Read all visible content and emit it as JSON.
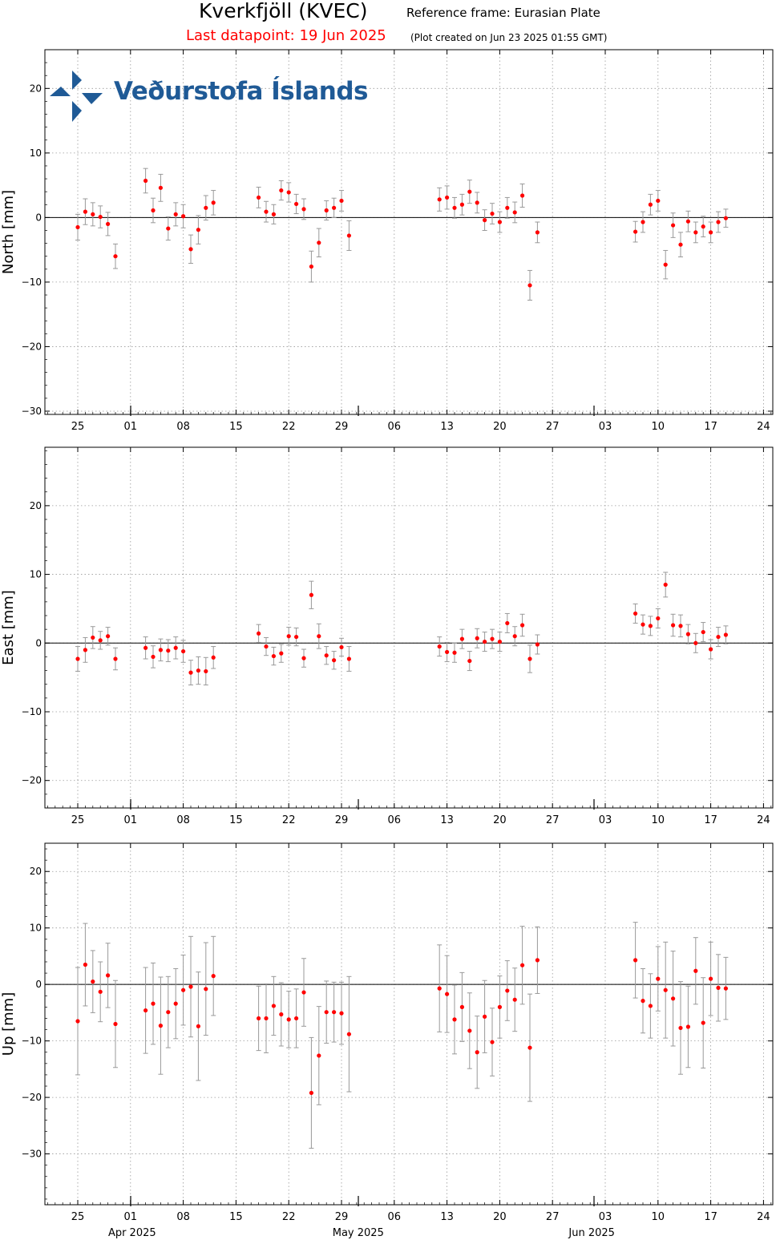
{
  "header": {
    "station_title": "Kverkfjöll (KVEC)",
    "reference_frame": "Reference frame: Eurasian Plate",
    "last_datapoint": "Last datapoint: 19 Jun 2025",
    "plot_created": "(Plot created on Jun 23 2025 01:55 GMT)"
  },
  "logo": {
    "text": "Veðurstofa Íslands",
    "color": "#1f5a96"
  },
  "colors": {
    "points": "#ff0000",
    "errorbars": "#999999",
    "zero_line": "#000000",
    "grid": "#999999",
    "title_red": "#ff0000"
  },
  "x_axis": {
    "tick_labels": [
      "25",
      "01",
      "08",
      "15",
      "22",
      "29",
      "06",
      "13",
      "20",
      "27",
      "03",
      "10",
      "17",
      "24"
    ],
    "month_labels": [
      "Apr 2025",
      "May 2025",
      "Jun 2025"
    ]
  },
  "chart_data": [
    {
      "type": "scatter",
      "ylabel": "North [mm]",
      "ylim": [
        -30.5,
        26
      ],
      "yticks": [
        20,
        10,
        0,
        -10,
        -20,
        -30
      ],
      "ytick_labels": [
        "20",
        "10",
        "0",
        "−10",
        "−20",
        "−30"
      ],
      "grid": true,
      "points": [
        {
          "x": "2025-03-25",
          "y": -1.5,
          "err": 2.0
        },
        {
          "x": "2025-03-26",
          "y": 0.9,
          "err": 2.0
        },
        {
          "x": "2025-03-27",
          "y": 0.5,
          "err": 1.8
        },
        {
          "x": "2025-03-28",
          "y": 0.1,
          "err": 1.7
        },
        {
          "x": "2025-03-29",
          "y": -1.0,
          "err": 1.8
        },
        {
          "x": "2025-03-30",
          "y": -6.0,
          "err": 1.9
        },
        {
          "x": "2025-04-03",
          "y": 5.7,
          "err": 1.9
        },
        {
          "x": "2025-04-04",
          "y": 1.1,
          "err": 1.9
        },
        {
          "x": "2025-04-05",
          "y": 4.6,
          "err": 2.1
        },
        {
          "x": "2025-04-06",
          "y": -1.7,
          "err": 1.8
        },
        {
          "x": "2025-04-07",
          "y": 0.5,
          "err": 1.8
        },
        {
          "x": "2025-04-08",
          "y": 0.2,
          "err": 1.8
        },
        {
          "x": "2025-04-09",
          "y": -4.9,
          "err": 2.2
        },
        {
          "x": "2025-04-10",
          "y": -1.9,
          "err": 2.2
        },
        {
          "x": "2025-04-11",
          "y": 1.5,
          "err": 1.9
        },
        {
          "x": "2025-04-12",
          "y": 2.3,
          "err": 1.9
        },
        {
          "x": "2025-04-18",
          "y": 3.1,
          "err": 1.6
        },
        {
          "x": "2025-04-19",
          "y": 0.9,
          "err": 1.6
        },
        {
          "x": "2025-04-20",
          "y": 0.5,
          "err": 1.5
        },
        {
          "x": "2025-04-21",
          "y": 4.2,
          "err": 1.5
        },
        {
          "x": "2025-04-22",
          "y": 3.9,
          "err": 1.5
        },
        {
          "x": "2025-04-23",
          "y": 2.1,
          "err": 1.5
        },
        {
          "x": "2025-04-24",
          "y": 1.3,
          "err": 1.6
        },
        {
          "x": "2025-04-25",
          "y": -7.6,
          "err": 2.4
        },
        {
          "x": "2025-04-26",
          "y": -3.9,
          "err": 2.2
        },
        {
          "x": "2025-04-27",
          "y": 1.1,
          "err": 1.5
        },
        {
          "x": "2025-04-28",
          "y": 1.5,
          "err": 1.5
        },
        {
          "x": "2025-04-29",
          "y": 2.6,
          "err": 1.6
        },
        {
          "x": "2025-04-30",
          "y": -2.8,
          "err": 2.3
        },
        {
          "x": "2025-05-12",
          "y": 2.8,
          "err": 1.8
        },
        {
          "x": "2025-05-13",
          "y": 3.1,
          "err": 1.8
        },
        {
          "x": "2025-05-14",
          "y": 1.5,
          "err": 1.6
        },
        {
          "x": "2025-05-15",
          "y": 2.0,
          "err": 1.6
        },
        {
          "x": "2025-05-16",
          "y": 4.0,
          "err": 1.8
        },
        {
          "x": "2025-05-17",
          "y": 2.3,
          "err": 1.6
        },
        {
          "x": "2025-05-18",
          "y": -0.4,
          "err": 1.6
        },
        {
          "x": "2025-05-19",
          "y": 0.6,
          "err": 1.6
        },
        {
          "x": "2025-05-20",
          "y": -0.7,
          "err": 1.6
        },
        {
          "x": "2025-05-21",
          "y": 1.5,
          "err": 1.6
        },
        {
          "x": "2025-05-22",
          "y": 0.8,
          "err": 1.6
        },
        {
          "x": "2025-05-23",
          "y": 3.4,
          "err": 1.8
        },
        {
          "x": "2025-05-24",
          "y": -10.5,
          "err": 2.3
        },
        {
          "x": "2025-05-25",
          "y": -2.3,
          "err": 1.6
        },
        {
          "x": "2025-06-07",
          "y": -2.2,
          "err": 1.6
        },
        {
          "x": "2025-06-08",
          "y": -0.7,
          "err": 1.6
        },
        {
          "x": "2025-06-09",
          "y": 2.0,
          "err": 1.6
        },
        {
          "x": "2025-06-10",
          "y": 2.6,
          "err": 1.6
        },
        {
          "x": "2025-06-11",
          "y": -7.3,
          "err": 2.2
        },
        {
          "x": "2025-06-12",
          "y": -1.2,
          "err": 1.9
        },
        {
          "x": "2025-06-13",
          "y": -4.2,
          "err": 1.9
        },
        {
          "x": "2025-06-14",
          "y": -0.6,
          "err": 1.6
        },
        {
          "x": "2025-06-15",
          "y": -2.3,
          "err": 1.6
        },
        {
          "x": "2025-06-16",
          "y": -1.4,
          "err": 1.6
        },
        {
          "x": "2025-06-17",
          "y": -2.3,
          "err": 1.6
        },
        {
          "x": "2025-06-18",
          "y": -0.7,
          "err": 1.6
        },
        {
          "x": "2025-06-19",
          "y": -0.1,
          "err": 1.4
        }
      ]
    },
    {
      "type": "scatter",
      "ylabel": "East [mm]",
      "ylim": [
        -24,
        28.5
      ],
      "yticks": [
        20,
        10,
        0,
        -10,
        -20
      ],
      "ytick_labels": [
        "20",
        "10",
        "0",
        "−10",
        "−20"
      ],
      "grid": true,
      "points": [
        {
          "x": "2025-03-25",
          "y": -2.3,
          "err": 1.8
        },
        {
          "x": "2025-03-26",
          "y": -1.0,
          "err": 1.8
        },
        {
          "x": "2025-03-27",
          "y": 0.8,
          "err": 1.6
        },
        {
          "x": "2025-03-28",
          "y": 0.4,
          "err": 1.3
        },
        {
          "x": "2025-03-29",
          "y": 1.0,
          "err": 1.3
        },
        {
          "x": "2025-03-30",
          "y": -2.3,
          "err": 1.6
        },
        {
          "x": "2025-04-03",
          "y": -0.7,
          "err": 1.6
        },
        {
          "x": "2025-04-04",
          "y": -2.0,
          "err": 1.6
        },
        {
          "x": "2025-04-05",
          "y": -1.0,
          "err": 1.6
        },
        {
          "x": "2025-04-06",
          "y": -1.1,
          "err": 1.6
        },
        {
          "x": "2025-04-07",
          "y": -0.7,
          "err": 1.6
        },
        {
          "x": "2025-04-08",
          "y": -1.2,
          "err": 1.6
        },
        {
          "x": "2025-04-09",
          "y": -4.3,
          "err": 1.8
        },
        {
          "x": "2025-04-10",
          "y": -4.0,
          "err": 2.0
        },
        {
          "x": "2025-04-11",
          "y": -4.1,
          "err": 2.0
        },
        {
          "x": "2025-04-12",
          "y": -2.1,
          "err": 1.6
        },
        {
          "x": "2025-04-18",
          "y": 1.4,
          "err": 1.3
        },
        {
          "x": "2025-04-19",
          "y": -0.5,
          "err": 1.3
        },
        {
          "x": "2025-04-20",
          "y": -1.9,
          "err": 1.3
        },
        {
          "x": "2025-04-21",
          "y": -1.5,
          "err": 1.3
        },
        {
          "x": "2025-04-22",
          "y": 1.0,
          "err": 1.3
        },
        {
          "x": "2025-04-23",
          "y": 0.9,
          "err": 1.3
        },
        {
          "x": "2025-04-24",
          "y": -2.2,
          "err": 1.3
        },
        {
          "x": "2025-04-25",
          "y": 7.0,
          "err": 2.0
        },
        {
          "x": "2025-04-26",
          "y": 1.0,
          "err": 1.8
        },
        {
          "x": "2025-04-27",
          "y": -1.8,
          "err": 1.3
        },
        {
          "x": "2025-04-28",
          "y": -2.5,
          "err": 1.3
        },
        {
          "x": "2025-04-29",
          "y": -0.6,
          "err": 1.3
        },
        {
          "x": "2025-04-30",
          "y": -2.3,
          "err": 1.8
        },
        {
          "x": "2025-05-12",
          "y": -0.5,
          "err": 1.4
        },
        {
          "x": "2025-05-13",
          "y": -1.3,
          "err": 1.4
        },
        {
          "x": "2025-05-14",
          "y": -1.4,
          "err": 1.4
        },
        {
          "x": "2025-05-15",
          "y": 0.6,
          "err": 1.4
        },
        {
          "x": "2025-05-16",
          "y": -2.6,
          "err": 1.4
        },
        {
          "x": "2025-05-17",
          "y": 0.7,
          "err": 1.4
        },
        {
          "x": "2025-05-18",
          "y": 0.2,
          "err": 1.4
        },
        {
          "x": "2025-05-19",
          "y": 0.6,
          "err": 1.4
        },
        {
          "x": "2025-05-20",
          "y": 0.2,
          "err": 1.4
        },
        {
          "x": "2025-05-21",
          "y": 2.9,
          "err": 1.4
        },
        {
          "x": "2025-05-22",
          "y": 1.0,
          "err": 1.4
        },
        {
          "x": "2025-05-23",
          "y": 2.6,
          "err": 1.6
        },
        {
          "x": "2025-05-24",
          "y": -2.3,
          "err": 2.0
        },
        {
          "x": "2025-05-25",
          "y": -0.2,
          "err": 1.4
        },
        {
          "x": "2025-06-07",
          "y": 4.3,
          "err": 1.4
        },
        {
          "x": "2025-06-08",
          "y": 2.7,
          "err": 1.4
        },
        {
          "x": "2025-06-09",
          "y": 2.5,
          "err": 1.4
        },
        {
          "x": "2025-06-10",
          "y": 3.6,
          "err": 1.4
        },
        {
          "x": "2025-06-11",
          "y": 8.5,
          "err": 1.8
        },
        {
          "x": "2025-06-12",
          "y": 2.6,
          "err": 1.6
        },
        {
          "x": "2025-06-13",
          "y": 2.5,
          "err": 1.6
        },
        {
          "x": "2025-06-14",
          "y": 1.3,
          "err": 1.4
        },
        {
          "x": "2025-06-15",
          "y": 0.0,
          "err": 1.4
        },
        {
          "x": "2025-06-16",
          "y": 1.6,
          "err": 1.4
        },
        {
          "x": "2025-06-17",
          "y": -0.9,
          "err": 1.4
        },
        {
          "x": "2025-06-18",
          "y": 0.9,
          "err": 1.4
        },
        {
          "x": "2025-06-19",
          "y": 1.2,
          "err": 1.3
        }
      ]
    },
    {
      "type": "scatter",
      "ylabel": "Up [mm]",
      "ylim": [
        -39,
        25
      ],
      "yticks": [
        20,
        10,
        0,
        -10,
        -20,
        -30
      ],
      "ytick_labels": [
        "20",
        "10",
        "0",
        "−10",
        "−20",
        "−30"
      ],
      "grid": true,
      "points": [
        {
          "x": "2025-03-25",
          "y": -6.5,
          "err": 9.5
        },
        {
          "x": "2025-03-26",
          "y": 3.5,
          "err": 7.3
        },
        {
          "x": "2025-03-27",
          "y": 0.5,
          "err": 5.5
        },
        {
          "x": "2025-03-28",
          "y": -1.3,
          "err": 5.3
        },
        {
          "x": "2025-03-29",
          "y": 1.6,
          "err": 5.7
        },
        {
          "x": "2025-03-30",
          "y": -7.0,
          "err": 7.7
        },
        {
          "x": "2025-04-03",
          "y": -4.6,
          "err": 7.6
        },
        {
          "x": "2025-04-04",
          "y": -3.4,
          "err": 7.2
        },
        {
          "x": "2025-04-05",
          "y": -7.3,
          "err": 8.6
        },
        {
          "x": "2025-04-06",
          "y": -4.9,
          "err": 6.3
        },
        {
          "x": "2025-04-07",
          "y": -3.4,
          "err": 6.2
        },
        {
          "x": "2025-04-08",
          "y": -1.0,
          "err": 6.2
        },
        {
          "x": "2025-04-09",
          "y": -0.4,
          "err": 8.9
        },
        {
          "x": "2025-04-10",
          "y": -7.4,
          "err": 9.6
        },
        {
          "x": "2025-04-11",
          "y": -0.8,
          "err": 8.2
        },
        {
          "x": "2025-04-12",
          "y": 1.5,
          "err": 7.0
        },
        {
          "x": "2025-04-18",
          "y": -6.0,
          "err": 5.7
        },
        {
          "x": "2025-04-19",
          "y": -6.0,
          "err": 6.1
        },
        {
          "x": "2025-04-20",
          "y": -3.8,
          "err": 5.2
        },
        {
          "x": "2025-04-21",
          "y": -5.3,
          "err": 5.6
        },
        {
          "x": "2025-04-22",
          "y": -6.2,
          "err": 5.0
        },
        {
          "x": "2025-04-23",
          "y": -6.0,
          "err": 5.2
        },
        {
          "x": "2025-04-24",
          "y": -1.4,
          "err": 6.0
        },
        {
          "x": "2025-04-25",
          "y": -19.2,
          "err": 9.8
        },
        {
          "x": "2025-04-26",
          "y": -12.6,
          "err": 8.7
        },
        {
          "x": "2025-04-27",
          "y": -4.9,
          "err": 5.5
        },
        {
          "x": "2025-04-28",
          "y": -4.9,
          "err": 5.3
        },
        {
          "x": "2025-04-29",
          "y": -5.1,
          "err": 5.5
        },
        {
          "x": "2025-04-30",
          "y": -8.8,
          "err": 10.2
        },
        {
          "x": "2025-05-12",
          "y": -0.7,
          "err": 7.7
        },
        {
          "x": "2025-05-13",
          "y": -1.7,
          "err": 6.8
        },
        {
          "x": "2025-05-14",
          "y": -6.2,
          "err": 6.1
        },
        {
          "x": "2025-05-15",
          "y": -4.0,
          "err": 6.1
        },
        {
          "x": "2025-05-16",
          "y": -8.2,
          "err": 6.7
        },
        {
          "x": "2025-05-17",
          "y": -12.0,
          "err": 6.4
        },
        {
          "x": "2025-05-18",
          "y": -5.7,
          "err": 6.4
        },
        {
          "x": "2025-05-19",
          "y": -10.2,
          "err": 6.0
        },
        {
          "x": "2025-05-20",
          "y": -4.0,
          "err": 5.5
        },
        {
          "x": "2025-05-21",
          "y": -1.1,
          "err": 5.3
        },
        {
          "x": "2025-05-22",
          "y": -2.7,
          "err": 5.6
        },
        {
          "x": "2025-05-23",
          "y": 3.4,
          "err": 6.9
        },
        {
          "x": "2025-05-24",
          "y": -11.2,
          "err": 9.5
        },
        {
          "x": "2025-05-25",
          "y": 4.3,
          "err": 5.9
        },
        {
          "x": "2025-06-07",
          "y": 4.3,
          "err": 6.7
        },
        {
          "x": "2025-06-08",
          "y": -2.9,
          "err": 5.7
        },
        {
          "x": "2025-06-09",
          "y": -3.8,
          "err": 5.7
        },
        {
          "x": "2025-06-10",
          "y": 1.0,
          "err": 5.7
        },
        {
          "x": "2025-06-11",
          "y": -1.0,
          "err": 8.5
        },
        {
          "x": "2025-06-12",
          "y": -2.5,
          "err": 8.4
        },
        {
          "x": "2025-06-13",
          "y": -7.7,
          "err": 8.2
        },
        {
          "x": "2025-06-14",
          "y": -7.5,
          "err": 7.2
        },
        {
          "x": "2025-06-15",
          "y": 2.4,
          "err": 5.9
        },
        {
          "x": "2025-06-16",
          "y": -6.8,
          "err": 8.0
        },
        {
          "x": "2025-06-17",
          "y": 1.0,
          "err": 6.5
        },
        {
          "x": "2025-06-18",
          "y": -0.6,
          "err": 5.9
        },
        {
          "x": "2025-06-19",
          "y": -0.7,
          "err": 5.5
        }
      ]
    }
  ]
}
